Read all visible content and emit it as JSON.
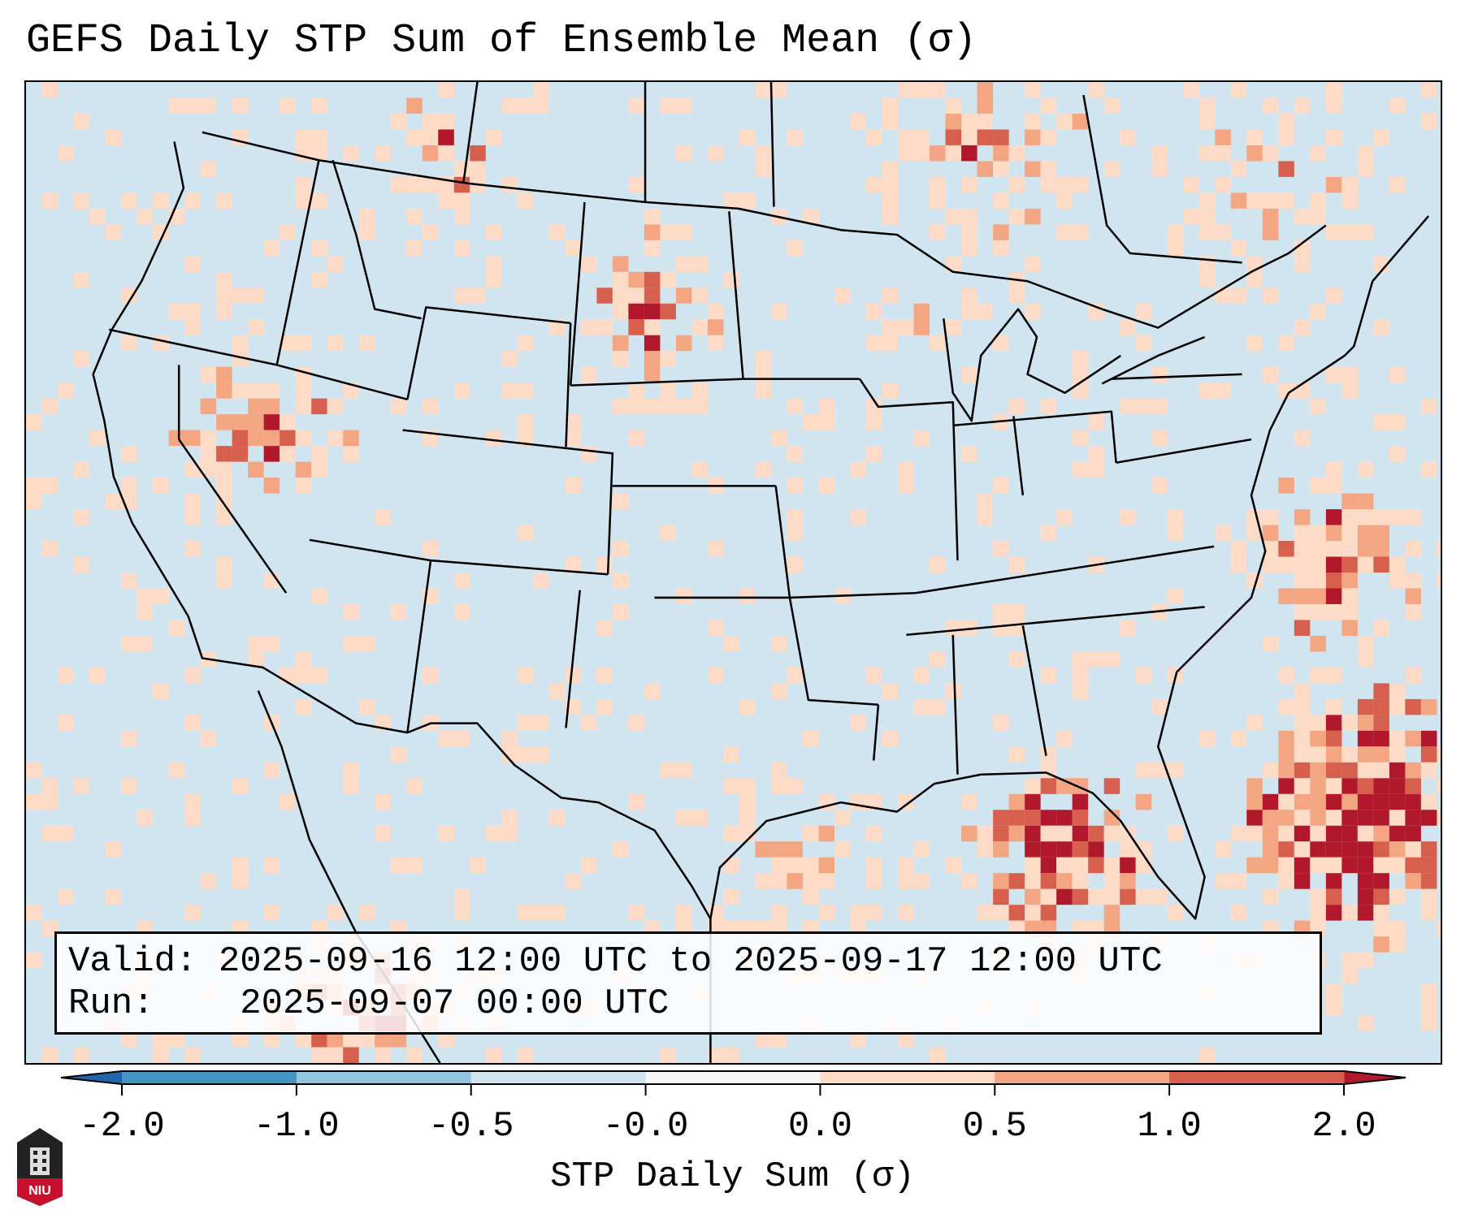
{
  "title": "GEFS Daily STP Sum of Ensemble Mean (σ)",
  "info": {
    "valid_label": "Valid:",
    "valid_value": "2025-09-16 12:00 UTC to 2025-09-17 12:00 UTC",
    "run_label": "Run:",
    "run_value": "2025-09-07 00:00 UTC"
  },
  "logo_text": "NIU",
  "chart_data": {
    "type": "heatmap",
    "title": "GEFS Daily STP Sum of Ensemble Mean (σ)",
    "xlabel": "STP Daily Sum (σ)",
    "region": "Continental United States",
    "colorbar": {
      "ticks": [
        "-2.0",
        "-1.0",
        "-0.5",
        "-0.0",
        "0.0",
        "0.5",
        "1.0",
        "2.0"
      ],
      "levels": [
        -2.0,
        -1.0,
        -0.5,
        -0.0,
        0.0,
        0.5,
        1.0,
        2.0
      ],
      "colors": [
        "#4393c3",
        "#92c5de",
        "#d1e5f0",
        "#f7f7f7",
        "#fddbc7",
        "#f4a582",
        "#d6604d"
      ],
      "extend_low_color": "#2166ac",
      "extend_high_color": "#b2182b"
    },
    "anomaly_regions": [
      {
        "name": "Southeast Atlantic / Bahamas",
        "max_sigma": "> 2.0"
      },
      {
        "name": "Gulf of Mexico / Florida",
        "max_sigma": "> 2.0"
      },
      {
        "name": "Northern Plains",
        "max_sigma": "> 2.0"
      },
      {
        "name": "Great Basin / Nevada",
        "max_sigma": "> 2.0"
      },
      {
        "name": "Ontario / Quebec",
        "max_sigma": "1.0"
      }
    ]
  }
}
